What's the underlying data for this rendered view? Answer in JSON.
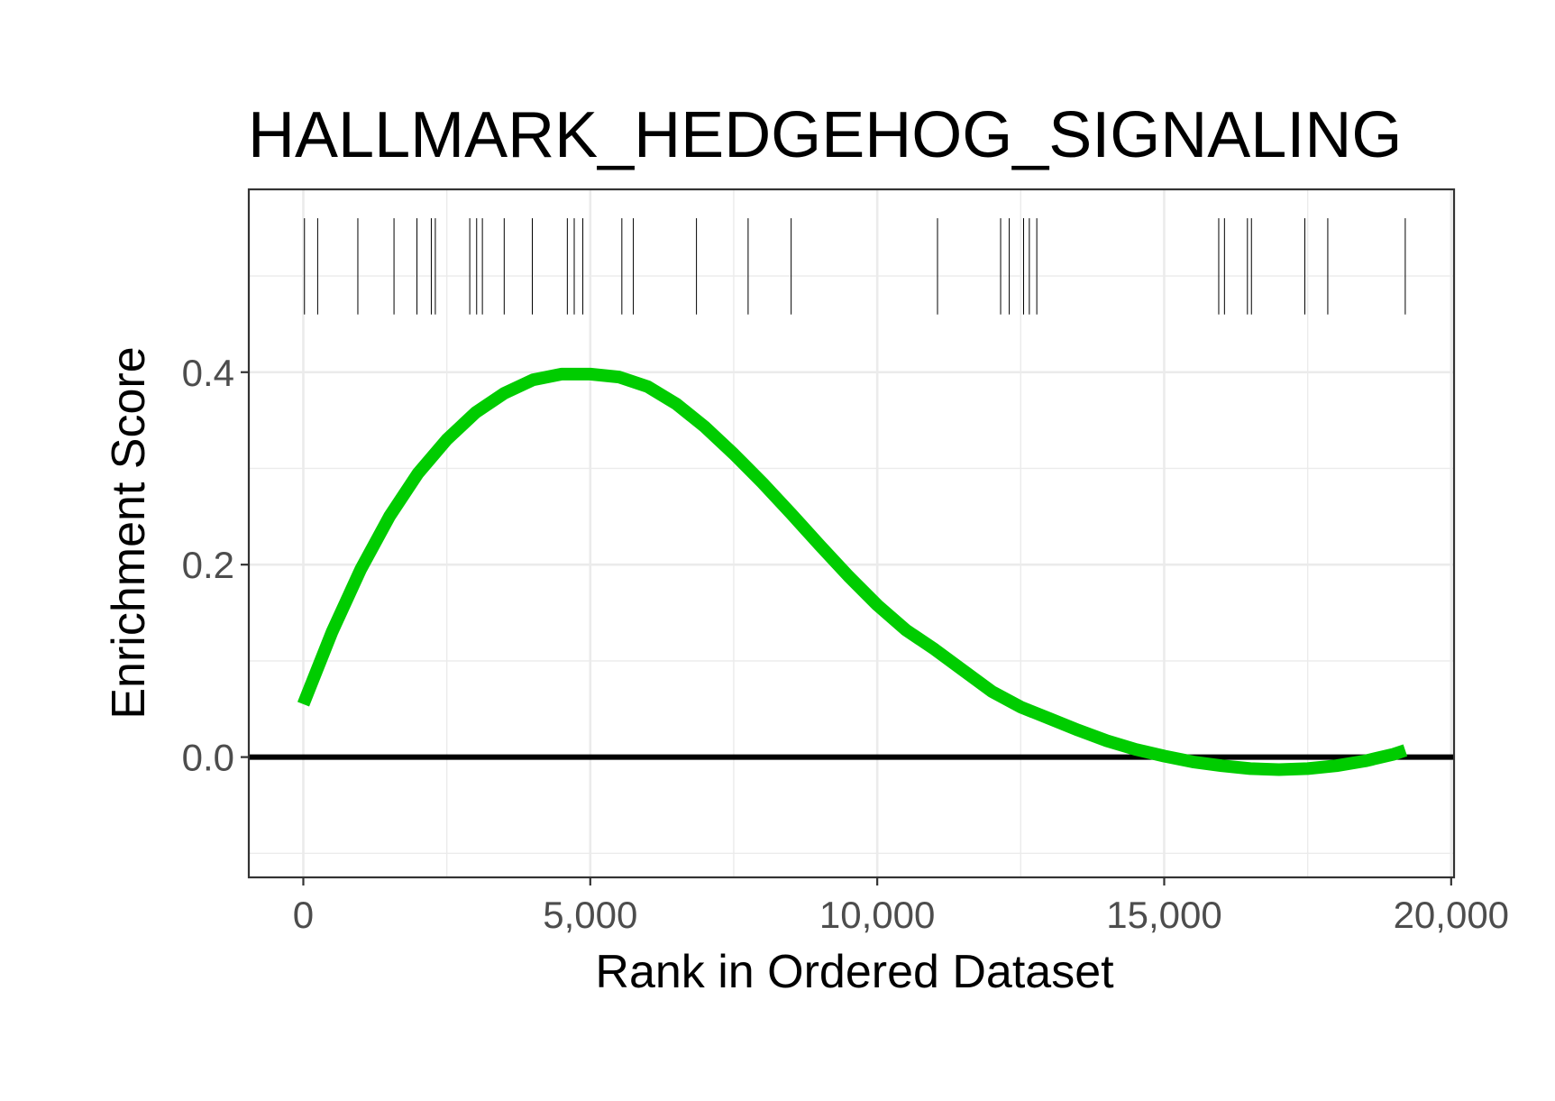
{
  "chart_data": {
    "type": "line",
    "title": "HALLMARK_HEDGEHOG_SIGNALING",
    "xlabel": "Rank in Ordered Dataset",
    "ylabel": "Enrichment Score",
    "xlim": [
      -950,
      20050
    ],
    "ylim": [
      -0.125,
      0.59
    ],
    "xticks": [
      0,
      5000,
      10000,
      15000,
      20000
    ],
    "xtick_labels": [
      "0",
      "5,000",
      "10,000",
      "15,000",
      "20,000"
    ],
    "yticks": [
      0.0,
      0.2,
      0.4
    ],
    "ytick_labels": [
      "0.0",
      "0.2",
      "0.4"
    ],
    "grid": true,
    "zero_line": 0.0,
    "colors": {
      "curve": "#00cc00",
      "hits": "#000000",
      "zero_line": "#000000",
      "grid": "#ebebeb",
      "panel_border": "#333333"
    },
    "series": [
      {
        "x": [
          0,
          500,
          1000,
          1500,
          2000,
          2500,
          3000,
          3500,
          4000,
          4500,
          5000,
          5500,
          6000,
          6500,
          7000,
          7500,
          8000,
          8500,
          9000,
          9500,
          10000,
          10500,
          11000,
          11500,
          12000,
          12500,
          13000,
          13500,
          14000,
          14500,
          15000,
          15500,
          16000,
          16500,
          17000,
          17500,
          18000,
          18500,
          19000,
          19200
        ],
        "y": [
          0.055,
          0.13,
          0.195,
          0.25,
          0.295,
          0.33,
          0.358,
          0.378,
          0.392,
          0.398,
          0.398,
          0.395,
          0.385,
          0.367,
          0.343,
          0.315,
          0.285,
          0.253,
          0.22,
          0.188,
          0.158,
          0.132,
          0.112,
          0.09,
          0.068,
          0.052,
          0.04,
          0.028,
          0.017,
          0.008,
          0.001,
          -0.005,
          -0.009,
          -0.012,
          -0.013,
          -0.012,
          -0.009,
          -0.004,
          0.003,
          0.007
        ]
      }
    ],
    "hits": [
      20,
      250,
      950,
      1580,
      1980,
      2230,
      2300,
      2900,
      3020,
      3120,
      3500,
      3990,
      4600,
      4720,
      4870,
      5550,
      5750,
      6850,
      7750,
      8500,
      11050,
      12150,
      12300,
      12550,
      12650,
      12780,
      15950,
      16050,
      16450,
      16520,
      17450,
      17850,
      19200
    ],
    "hits_band": [
      0.46,
      0.56
    ]
  }
}
